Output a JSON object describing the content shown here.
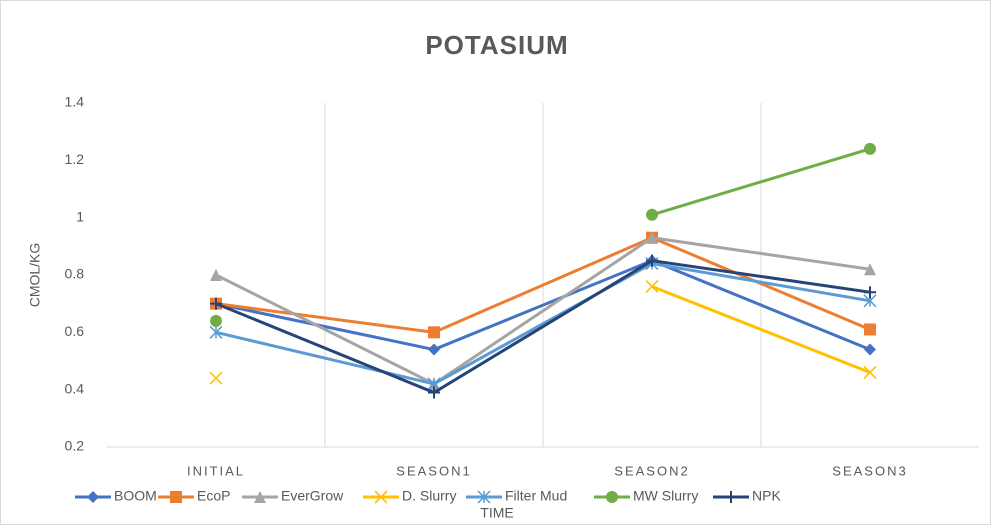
{
  "chart_data": {
    "type": "line",
    "title": "POTASIUM",
    "x_label": "TIME",
    "y_label": "CMOL/KG",
    "categories": [
      "INITIAL",
      "SEASON1",
      "SEASON2",
      "SEASON3"
    ],
    "ylim": [
      0.2,
      1.4
    ],
    "yticks": [
      0.2,
      0.4,
      0.6,
      0.8,
      1,
      1.2,
      1.4
    ],
    "grid": "x",
    "legend": "bottom",
    "series": [
      {
        "name": "BOOM",
        "color": "#4472c4",
        "marker": "diamond",
        "values": [
          0.7,
          0.54,
          0.85,
          0.54
        ]
      },
      {
        "name": "EcoP",
        "color": "#ed7d31",
        "marker": "square",
        "values": [
          0.7,
          0.6,
          0.93,
          0.61
        ]
      },
      {
        "name": "EverGrow",
        "color": "#a5a5a5",
        "marker": "triangle",
        "values": [
          0.8,
          0.42,
          0.93,
          0.82
        ]
      },
      {
        "name": "D. Slurry",
        "color": "#ffc000",
        "marker": "x",
        "values": [
          0.44,
          null,
          0.76,
          0.46
        ]
      },
      {
        "name": "Filter Mud",
        "color": "#5b9bd5",
        "marker": "star",
        "values": [
          0.6,
          0.42,
          0.84,
          0.71
        ]
      },
      {
        "name": "MW Slurry",
        "color": "#70ad47",
        "marker": "circle",
        "values": [
          0.64,
          null,
          1.01,
          1.24
        ]
      },
      {
        "name": "NPK",
        "color": "#264478",
        "marker": "plus",
        "values": [
          0.7,
          0.39,
          0.85,
          0.74
        ]
      }
    ]
  }
}
